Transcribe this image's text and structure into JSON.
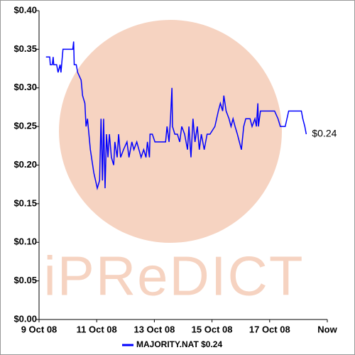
{
  "chart_data": {
    "type": "line",
    "watermark": "iPReDICT",
    "end_label": "$0.24",
    "xlim": [
      0,
      10
    ],
    "xticks": [
      {
        "value": 0,
        "label": "9 Oct 08"
      },
      {
        "value": 2,
        "label": "11 Oct 08"
      },
      {
        "value": 4,
        "label": "13 Oct 08"
      },
      {
        "value": 6,
        "label": "15 Oct 08"
      },
      {
        "value": 8,
        "label": "17 Oct 08"
      },
      {
        "value": 10,
        "label": "Now"
      }
    ],
    "ylim": [
      0,
      0.4
    ],
    "yticks": [
      {
        "value": 0,
        "label": "$0.00"
      },
      {
        "value": 0.05,
        "label": "$0.05"
      },
      {
        "value": 0.1,
        "label": "$0.10"
      },
      {
        "value": 0.15,
        "label": "$0.15"
      },
      {
        "value": 0.2,
        "label": "$0.20"
      },
      {
        "value": 0.25,
        "label": "$0.25"
      },
      {
        "value": 0.3,
        "label": "$0.30"
      },
      {
        "value": 0.35,
        "label": "$0.35"
      },
      {
        "value": 0.4,
        "label": "$0.40"
      }
    ],
    "x": [
      0.24,
      0.37,
      0.39,
      0.46,
      0.49,
      0.51,
      0.61,
      0.66,
      0.73,
      0.76,
      0.83,
      1.1,
      1.17,
      1.2,
      1.22,
      1.29,
      1.34,
      1.46,
      1.51,
      1.59,
      1.63,
      1.68,
      1.78,
      1.9,
      2.02,
      2.1,
      2.15,
      2.2,
      2.24,
      2.29,
      2.34,
      2.39,
      2.44,
      2.51,
      2.59,
      2.63,
      2.71,
      2.76,
      2.83,
      2.93,
      3.05,
      3.12,
      3.22,
      3.29,
      3.39,
      3.54,
      3.63,
      3.71,
      3.76,
      3.83,
      3.85,
      3.93,
      4.02,
      4.27,
      4.39,
      4.44,
      4.51,
      4.56,
      4.61,
      4.63,
      4.71,
      4.8,
      4.88,
      4.95,
      5.05,
      5.15,
      5.2,
      5.27,
      5.34,
      5.41,
      5.49,
      5.56,
      5.63,
      5.73,
      5.83,
      5.93,
      6.1,
      6.22,
      6.29,
      6.37,
      6.41,
      6.49,
      6.59,
      6.66,
      6.73,
      6.8,
      6.88,
      6.95,
      7.02,
      7.1,
      7.17,
      7.32,
      7.39,
      7.49,
      7.54,
      7.59,
      7.61,
      7.68,
      7.93,
      8.17,
      8.29,
      8.37,
      8.54,
      8.66,
      8.9,
      9.1,
      9.15,
      9.22,
      9.27
    ],
    "series": [
      {
        "name": "MAJORITY.NAT $0.24",
        "color": "#0000ff",
        "values": [
          0.34,
          0.34,
          0.33,
          0.33,
          0.34,
          0.33,
          0.33,
          0.32,
          0.33,
          0.32,
          0.35,
          0.35,
          0.35,
          0.36,
          0.33,
          0.33,
          0.32,
          0.31,
          0.29,
          0.28,
          0.25,
          0.26,
          0.22,
          0.19,
          0.17,
          0.18,
          0.26,
          0.18,
          0.26,
          0.17,
          0.24,
          0.21,
          0.24,
          0.21,
          0.2,
          0.23,
          0.21,
          0.24,
          0.21,
          0.22,
          0.23,
          0.21,
          0.23,
          0.22,
          0.23,
          0.21,
          0.22,
          0.21,
          0.23,
          0.21,
          0.24,
          0.24,
          0.23,
          0.23,
          0.23,
          0.25,
          0.23,
          0.26,
          0.3,
          0.25,
          0.24,
          0.24,
          0.23,
          0.25,
          0.24,
          0.22,
          0.25,
          0.21,
          0.26,
          0.23,
          0.25,
          0.22,
          0.24,
          0.22,
          0.24,
          0.24,
          0.25,
          0.27,
          0.28,
          0.27,
          0.29,
          0.27,
          0.26,
          0.25,
          0.26,
          0.25,
          0.24,
          0.23,
          0.22,
          0.25,
          0.26,
          0.26,
          0.25,
          0.26,
          0.25,
          0.28,
          0.25,
          0.27,
          0.27,
          0.27,
          0.26,
          0.25,
          0.25,
          0.27,
          0.27,
          0.27,
          0.26,
          0.25,
          0.24
        ]
      }
    ]
  }
}
